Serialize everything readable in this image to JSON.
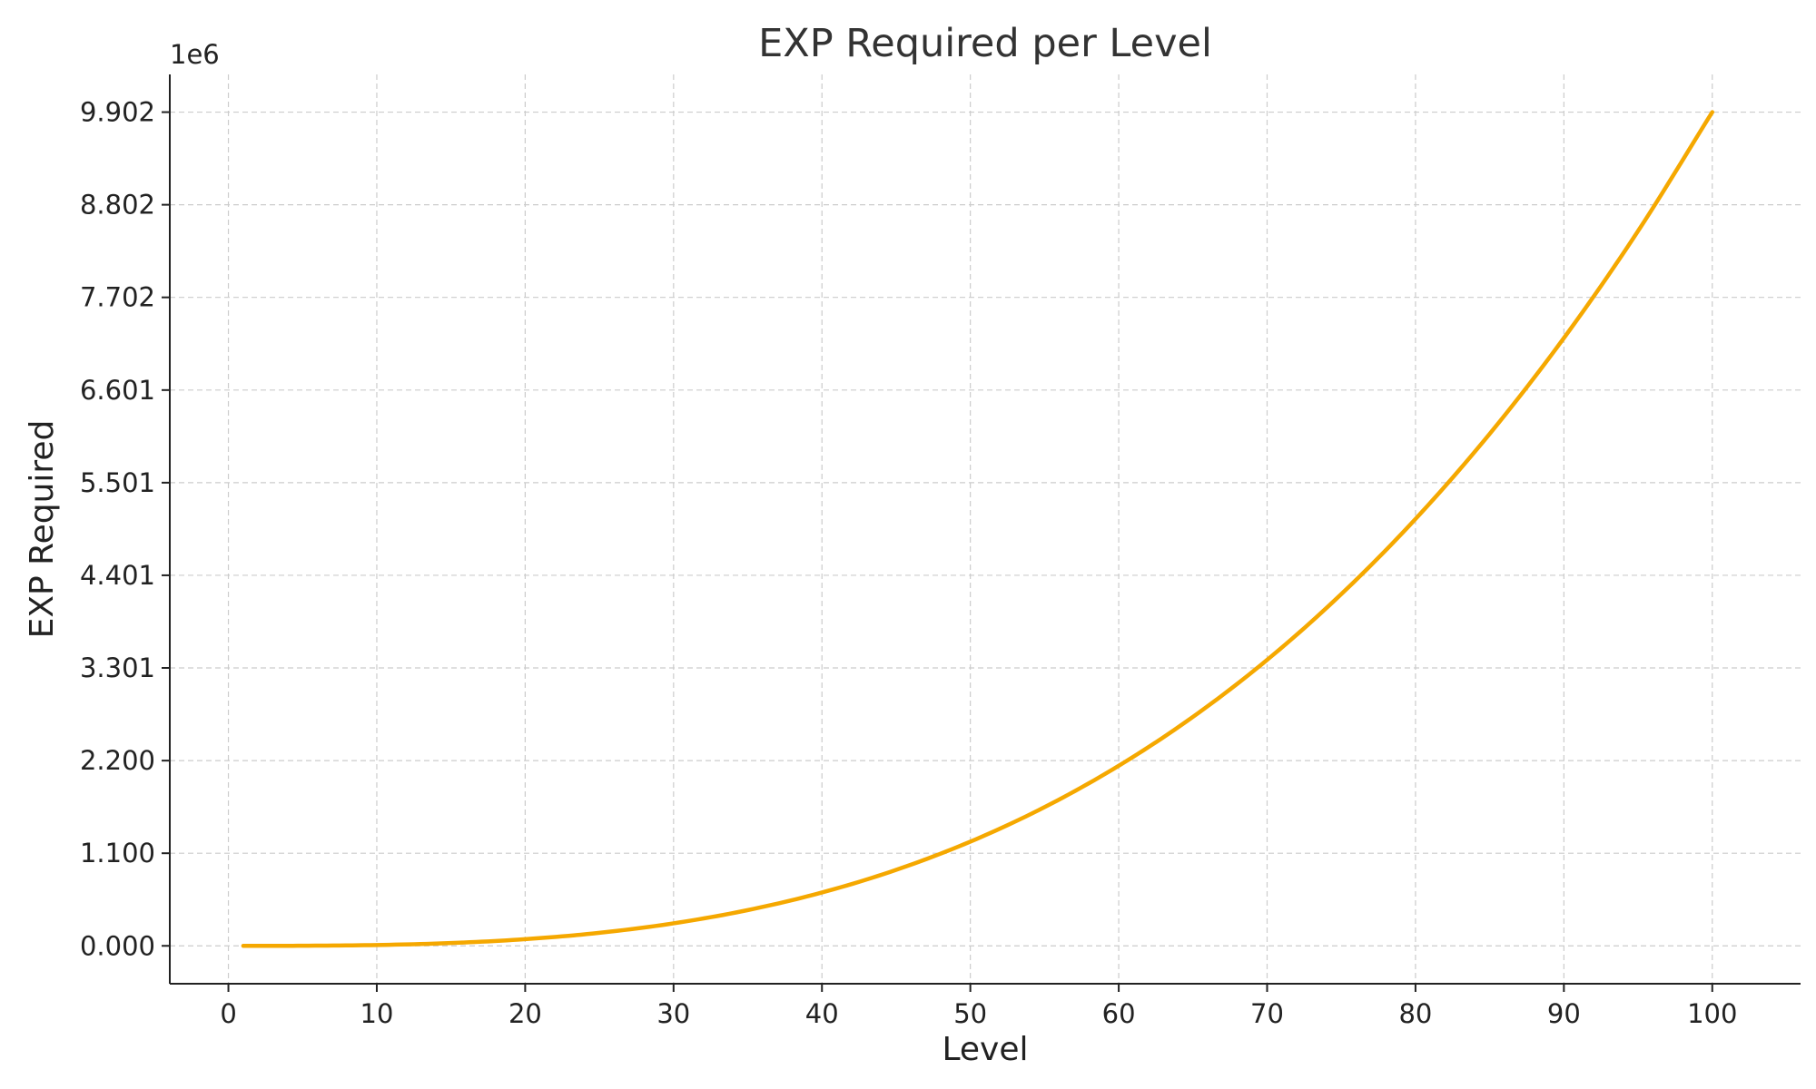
{
  "chart_data": {
    "type": "line",
    "title": "EXP Required per Level",
    "xlabel": "Level",
    "ylabel": "EXP Required",
    "y_offset_label": "1e6",
    "xlim": [
      -3.95,
      105.95
    ],
    "ylim": [
      -0.45,
      10.35
    ],
    "x_ticks": [
      0,
      10,
      20,
      30,
      40,
      50,
      60,
      70,
      80,
      90,
      100
    ],
    "x_tick_labels": [
      "0",
      "10",
      "20",
      "30",
      "40",
      "50",
      "60",
      "70",
      "80",
      "90",
      "100"
    ],
    "y_ticks": [
      0,
      1.1,
      2.2,
      3.301,
      4.401,
      5.501,
      6.601,
      7.702,
      8.802,
      9.902
    ],
    "y_tick_labels": [
      "0.000",
      "1.100",
      "2.200",
      "3.301",
      "4.401",
      "5.501",
      "6.601",
      "7.702",
      "8.802",
      "9.902"
    ],
    "grid": true,
    "series": [
      {
        "color": "#f5a800",
        "x": [
          1,
          5,
          10,
          15,
          20,
          25,
          30,
          35,
          40,
          45,
          50,
          55,
          60,
          65,
          70,
          75,
          80,
          85,
          90,
          95,
          100
        ],
        "y": [
          0.0,
          0.0012,
          0.0099,
          0.0334,
          0.0792,
          0.1547,
          0.2674,
          0.4245,
          0.6337,
          0.9023,
          1.2378,
          1.6475,
          2.1389,
          2.7195,
          3.3966,
          4.1777,
          5.0702,
          6.0816,
          7.2191,
          8.4904,
          9.9025
        ]
      }
    ]
  }
}
